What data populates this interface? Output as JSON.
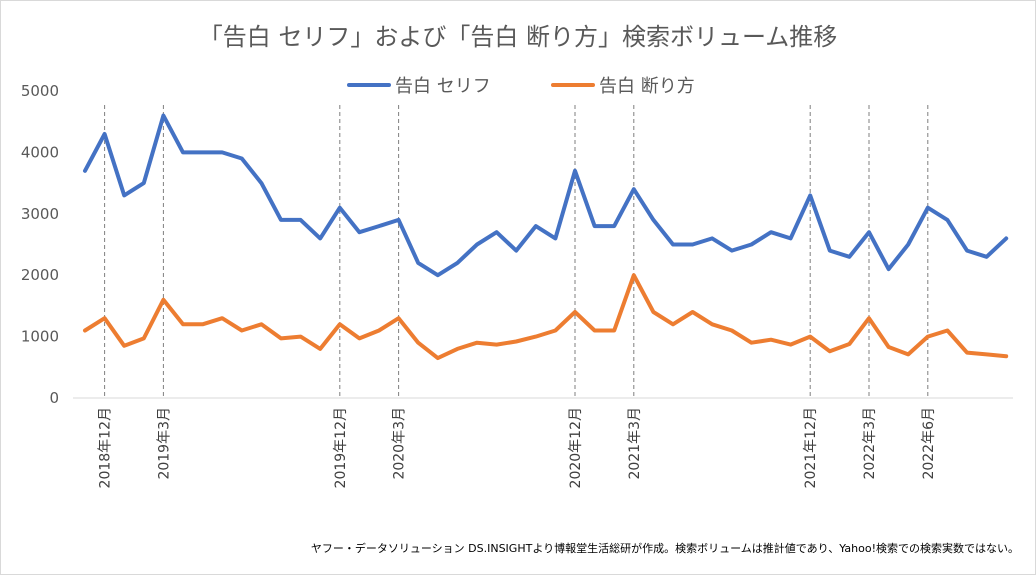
{
  "chart_data": {
    "type": "line",
    "title": "「告白 セリフ」および「告白 断り方」検索ボリューム推移",
    "ylim": [
      0,
      5000
    ],
    "yticks": [
      0,
      1000,
      2000,
      3000,
      4000,
      5000
    ],
    "grid": false,
    "legend_position": "top",
    "x_count": 48,
    "marked_labels": [
      {
        "index": 1,
        "label": "2018年12月"
      },
      {
        "index": 4,
        "label": "2019年3月"
      },
      {
        "index": 13,
        "label": "2019年12月"
      },
      {
        "index": 16,
        "label": "2020年3月"
      },
      {
        "index": 25,
        "label": "2020年12月"
      },
      {
        "index": 28,
        "label": "2021年3月"
      },
      {
        "index": 37,
        "label": "2021年12月"
      },
      {
        "index": 40,
        "label": "2022年3月"
      },
      {
        "index": 43,
        "label": "2022年6月"
      }
    ],
    "series": [
      {
        "name": "告白 セリフ",
        "color": "#4472c4",
        "values": [
          3700,
          4300,
          3300,
          3500,
          4600,
          4000,
          4000,
          4000,
          3900,
          3500,
          2900,
          2900,
          2600,
          3100,
          2700,
          2800,
          2900,
          2200,
          2000,
          2200,
          2500,
          2700,
          2400,
          2800,
          2600,
          3700,
          2800,
          2800,
          3400,
          2900,
          2500,
          2500,
          2600,
          2400,
          2500,
          2700,
          2600,
          3300,
          2400,
          2300,
          2700,
          2100,
          2500,
          3100,
          2900,
          2400,
          2300,
          2600
        ]
      },
      {
        "name": "告白 断り方",
        "color": "#ed7d31",
        "values": [
          1100,
          1300,
          850,
          970,
          1600,
          1200,
          1200,
          1300,
          1100,
          1200,
          970,
          1000,
          800,
          1200,
          970,
          1100,
          1300,
          900,
          650,
          800,
          900,
          870,
          920,
          1000,
          1100,
          1400,
          1100,
          1100,
          2000,
          1400,
          1200,
          1400,
          1200,
          1100,
          900,
          950,
          870,
          1000,
          760,
          880,
          1300,
          830,
          710,
          1000,
          1100,
          740,
          710,
          680
        ]
      }
    ],
    "footnote": "ヤフー・データソリューション DS.INSIGHTより博報堂生活総研が作成。検索ボリュームは推計値であり、Yahoo!検索での検索実数ではない。"
  }
}
